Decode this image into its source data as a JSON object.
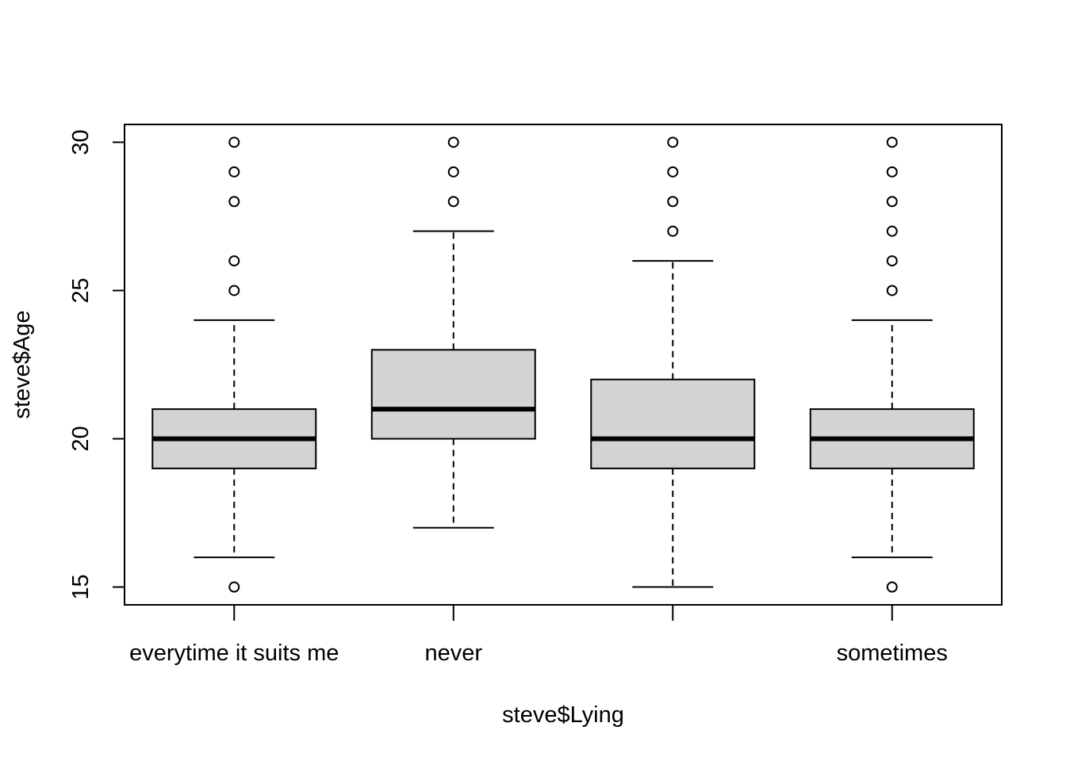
{
  "chart_data": {
    "type": "boxplot",
    "xlabel": "steve$Lying",
    "ylabel": "steve$Age",
    "ylim": [
      14.4,
      30.6
    ],
    "yticks": [
      15,
      20,
      25,
      30
    ],
    "categories": [
      "everytime it suits me",
      "never",
      "",
      "sometimes"
    ],
    "boxes": [
      {
        "category": "everytime it suits me",
        "whisker_low": 16,
        "q1": 19,
        "median": 20,
        "q3": 21,
        "whisker_high": 24,
        "outliers": [
          15,
          25,
          26,
          28,
          29,
          30
        ]
      },
      {
        "category": "never",
        "whisker_low": 17,
        "q1": 20,
        "median": 21,
        "q3": 23,
        "whisker_high": 27,
        "outliers": [
          28,
          29,
          30
        ]
      },
      {
        "category": "",
        "whisker_low": 15,
        "q1": 19,
        "median": 20,
        "q3": 22,
        "whisker_high": 26,
        "outliers": [
          27,
          28,
          29,
          30
        ]
      },
      {
        "category": "sometimes",
        "whisker_low": 16,
        "q1": 19,
        "median": 20,
        "q3": 21,
        "whisker_high": 24,
        "outliers": [
          15,
          25,
          26,
          27,
          28,
          29,
          30
        ]
      }
    ],
    "colors": {
      "box_fill": "#d3d3d3",
      "stroke": "#000000"
    },
    "grid": false,
    "legend": "none"
  }
}
